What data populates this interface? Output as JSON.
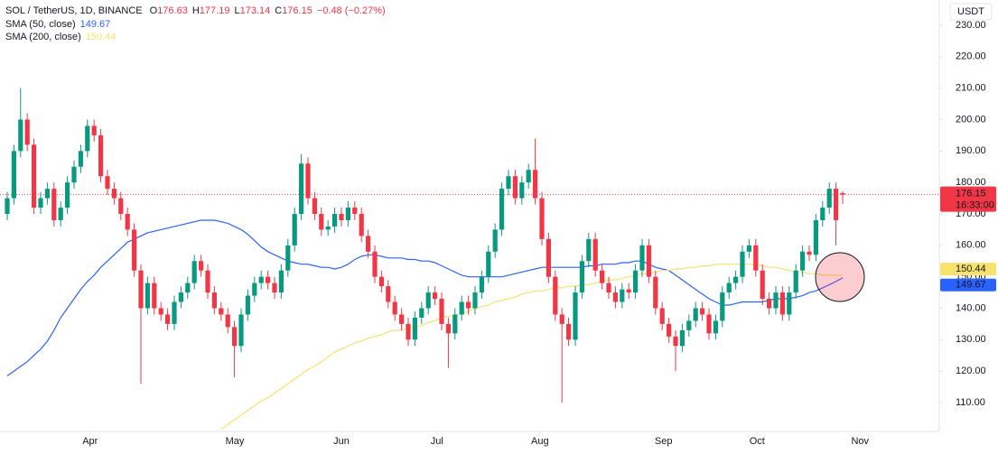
{
  "chart_data": {
    "type": "candlestick",
    "title": "SOL / TetherUS, 1D, BINANCE",
    "currency": "USDT",
    "ohlc_labels": [
      "O",
      "H",
      "L",
      "C"
    ],
    "change": "−0.48 (−0.27%)",
    "countdown": "16:33:00",
    "up_color": "#089981",
    "down_color": "#f23645",
    "open": [
      170,
      175,
      190,
      200,
      192,
      172,
      175,
      178,
      168,
      172,
      180,
      185,
      190,
      198,
      195,
      182,
      178,
      175,
      170,
      165,
      152,
      140,
      148,
      140,
      138,
      135,
      142,
      145,
      148,
      155,
      152,
      145,
      140,
      138,
      134,
      128,
      138,
      144,
      148,
      150,
      148,
      145,
      152,
      160,
      170,
      186,
      175,
      170,
      165,
      166,
      170,
      168,
      172,
      170,
      163,
      158,
      150,
      147,
      142,
      138,
      135,
      130,
      137,
      140,
      145,
      143,
      135,
      132,
      138,
      142,
      140,
      145,
      150,
      158,
      165,
      178,
      182,
      175,
      180,
      184,
      175,
      162,
      150,
      138,
      135,
      130,
      145,
      155,
      162,
      152,
      148,
      145,
      142,
      146,
      145,
      152,
      160,
      150,
      140,
      135,
      131,
      128,
      133,
      136,
      140,
      138,
      132,
      136,
      145,
      148,
      150,
      158,
      160,
      152,
      143,
      140,
      145,
      138,
      145,
      152,
      158,
      157,
      168,
      172,
      178,
      176.63
    ],
    "high": [
      177,
      192,
      210,
      202,
      194,
      177,
      180,
      180,
      174,
      182,
      187,
      192,
      200,
      200,
      197,
      184,
      180,
      177,
      172,
      167,
      154,
      150,
      150,
      142,
      140,
      144,
      147,
      150,
      157,
      157,
      154,
      147,
      142,
      140,
      136,
      140,
      146,
      150,
      152,
      152,
      150,
      154,
      162,
      172,
      189,
      188,
      177,
      172,
      168,
      172,
      172,
      174,
      174,
      172,
      165,
      160,
      152,
      149,
      144,
      140,
      137,
      139,
      142,
      147,
      147,
      145,
      137,
      140,
      144,
      144,
      147,
      152,
      160,
      167,
      180,
      184,
      184,
      182,
      186,
      194,
      177,
      164,
      152,
      140,
      137,
      147,
      157,
      164,
      164,
      154,
      150,
      147,
      148,
      148,
      154,
      162,
      162,
      152,
      142,
      137,
      133,
      135,
      138,
      142,
      142,
      140,
      138,
      147,
      150,
      152,
      160,
      162,
      162,
      154,
      145,
      147,
      147,
      147,
      154,
      160,
      160,
      170,
      174,
      180,
      180,
      177.19
    ],
    "low": [
      168,
      173,
      188,
      190,
      170,
      170,
      173,
      166,
      166,
      170,
      178,
      183,
      188,
      193,
      180,
      176,
      173,
      168,
      163,
      150,
      116,
      138,
      138,
      136,
      133,
      133,
      140,
      143,
      146,
      150,
      143,
      138,
      136,
      132,
      118,
      126,
      136,
      142,
      146,
      146,
      143,
      143,
      150,
      158,
      168,
      173,
      168,
      163,
      163,
      164,
      166,
      166,
      168,
      161,
      156,
      148,
      145,
      140,
      136,
      133,
      128,
      128,
      135,
      138,
      141,
      133,
      121,
      130,
      136,
      138,
      138,
      143,
      148,
      156,
      163,
      176,
      173,
      173,
      178,
      173,
      160,
      148,
      136,
      110,
      128,
      128,
      143,
      153,
      150,
      146,
      143,
      140,
      140,
      143,
      143,
      150,
      148,
      138,
      133,
      129,
      120,
      126,
      131,
      134,
      136,
      130,
      130,
      134,
      143,
      146,
      148,
      156,
      150,
      141,
      138,
      138,
      136,
      136,
      143,
      150,
      155,
      155,
      166,
      170,
      160,
      173.14
    ],
    "close": [
      175,
      190,
      200,
      192,
      172,
      175,
      178,
      168,
      172,
      180,
      185,
      190,
      198,
      195,
      182,
      178,
      175,
      170,
      165,
      152,
      140,
      148,
      140,
      138,
      135,
      142,
      145,
      148,
      155,
      152,
      145,
      140,
      138,
      134,
      128,
      138,
      144,
      148,
      150,
      148,
      145,
      152,
      160,
      170,
      186,
      175,
      170,
      165,
      166,
      170,
      168,
      172,
      170,
      163,
      158,
      150,
      147,
      142,
      138,
      135,
      130,
      137,
      140,
      145,
      143,
      135,
      132,
      138,
      142,
      140,
      145,
      150,
      158,
      165,
      178,
      182,
      175,
      180,
      184,
      175,
      162,
      150,
      138,
      135,
      130,
      145,
      155,
      162,
      152,
      148,
      145,
      142,
      146,
      145,
      152,
      160,
      150,
      140,
      135,
      131,
      128,
      133,
      136,
      140,
      138,
      132,
      136,
      145,
      148,
      150,
      158,
      160,
      152,
      143,
      140,
      145,
      138,
      145,
      152,
      158,
      157,
      168,
      172,
      178,
      168,
      176.15
    ],
    "series": [
      {
        "name": "SMA (50, close)",
        "color": "#2962ff",
        "values": [
          118.5,
          120,
          121.5,
          123,
          125,
          127,
          129.5,
          133,
          137,
          140,
          143,
          146,
          148.5,
          150.5,
          153,
          155,
          157,
          159,
          161,
          162,
          163,
          164,
          164.5,
          165,
          165.5,
          166,
          166.5,
          167,
          167.5,
          168,
          168,
          168,
          167.5,
          167,
          166,
          165,
          163.5,
          161.5,
          159.5,
          158,
          157,
          156,
          155,
          154.5,
          154,
          154,
          153.5,
          153,
          153,
          152.5,
          153,
          154,
          155.5,
          156.5,
          157,
          157,
          156.5,
          156,
          156,
          156,
          155.5,
          155.5,
          155,
          155,
          154.5,
          153.5,
          152.5,
          151.5,
          150.5,
          150,
          150,
          150,
          150,
          150,
          150,
          150.5,
          151,
          151.5,
          152,
          152.5,
          153,
          153,
          153,
          153,
          153,
          153,
          153,
          153.5,
          153.5,
          154,
          154,
          154,
          154.5,
          154.5,
          155,
          155,
          154,
          153,
          152.5,
          152,
          150.5,
          149,
          147.5,
          146,
          144.5,
          143,
          142,
          141,
          141,
          141.5,
          142,
          142,
          142,
          142,
          142.5,
          143,
          143,
          143,
          143.5,
          144,
          145,
          145.5,
          146.5,
          147.5,
          148.5,
          149.67
        ]
      },
      {
        "name": "SMA (200, close)",
        "color": "#f7e36b",
        "values": [
          null,
          null,
          null,
          null,
          null,
          null,
          null,
          null,
          null,
          null,
          null,
          null,
          null,
          null,
          null,
          null,
          null,
          null,
          null,
          null,
          null,
          null,
          null,
          null,
          null,
          null,
          null,
          null,
          null,
          null,
          null,
          null,
          101.5,
          103,
          104.5,
          106,
          107.5,
          109,
          110.5,
          111.5,
          113,
          114.5,
          116,
          117.5,
          119,
          120.5,
          121.5,
          123,
          124.5,
          126,
          127,
          128,
          129,
          129.5,
          130.5,
          131,
          131.5,
          132.5,
          133,
          133,
          133.5,
          134,
          134.5,
          135.5,
          136,
          137,
          137.5,
          137.5,
          138.5,
          139,
          140,
          140.5,
          141,
          142,
          142.5,
          143,
          143.5,
          144.5,
          145,
          145.5,
          145.5,
          146,
          146.5,
          146.5,
          147,
          147,
          147.5,
          147.5,
          148,
          148.5,
          149,
          149,
          149.5,
          150,
          150.5,
          151,
          151,
          151.5,
          152,
          152,
          152.5,
          152.5,
          153,
          153,
          153.5,
          153.5,
          154,
          154,
          154,
          154,
          154,
          154,
          154,
          153.5,
          153,
          153,
          152.5,
          152,
          151.5,
          151.5,
          151,
          151,
          150.5,
          150.5,
          150.5,
          150.44
        ]
      }
    ],
    "xlim": [
      -1.08,
      139.46
    ],
    "xticks": [
      {
        "value": 12.4,
        "label": "Apr"
      },
      {
        "value": 34.05,
        "label": "May"
      },
      {
        "value": 50,
        "label": "Jun"
      },
      {
        "value": 64.3,
        "label": "Jul"
      },
      {
        "value": 79.7,
        "label": "Aug"
      },
      {
        "value": 98.2,
        "label": "Sep"
      },
      {
        "value": 112.2,
        "label": "Oct"
      },
      {
        "value": 127.6,
        "label": "Nov"
      }
    ],
    "ylim": [
      100.81,
      238.04
    ],
    "yticks": [
      {
        "value": 110,
        "label": "110.00"
      },
      {
        "value": 120,
        "label": "120.00"
      },
      {
        "value": 130,
        "label": "130.00"
      },
      {
        "value": 140,
        "label": "140.00"
      },
      {
        "value": 150,
        "label": "150.00"
      },
      {
        "value": 160,
        "label": "160.00"
      },
      {
        "value": 170,
        "label": "170.00"
      },
      {
        "value": 180,
        "label": "180.00"
      },
      {
        "value": 190,
        "label": "190.00"
      },
      {
        "value": 200,
        "label": "200.00"
      },
      {
        "value": 210,
        "label": "210.00"
      },
      {
        "value": 220,
        "label": "220.00"
      },
      {
        "value": 230,
        "label": "230.00"
      }
    ]
  }
}
